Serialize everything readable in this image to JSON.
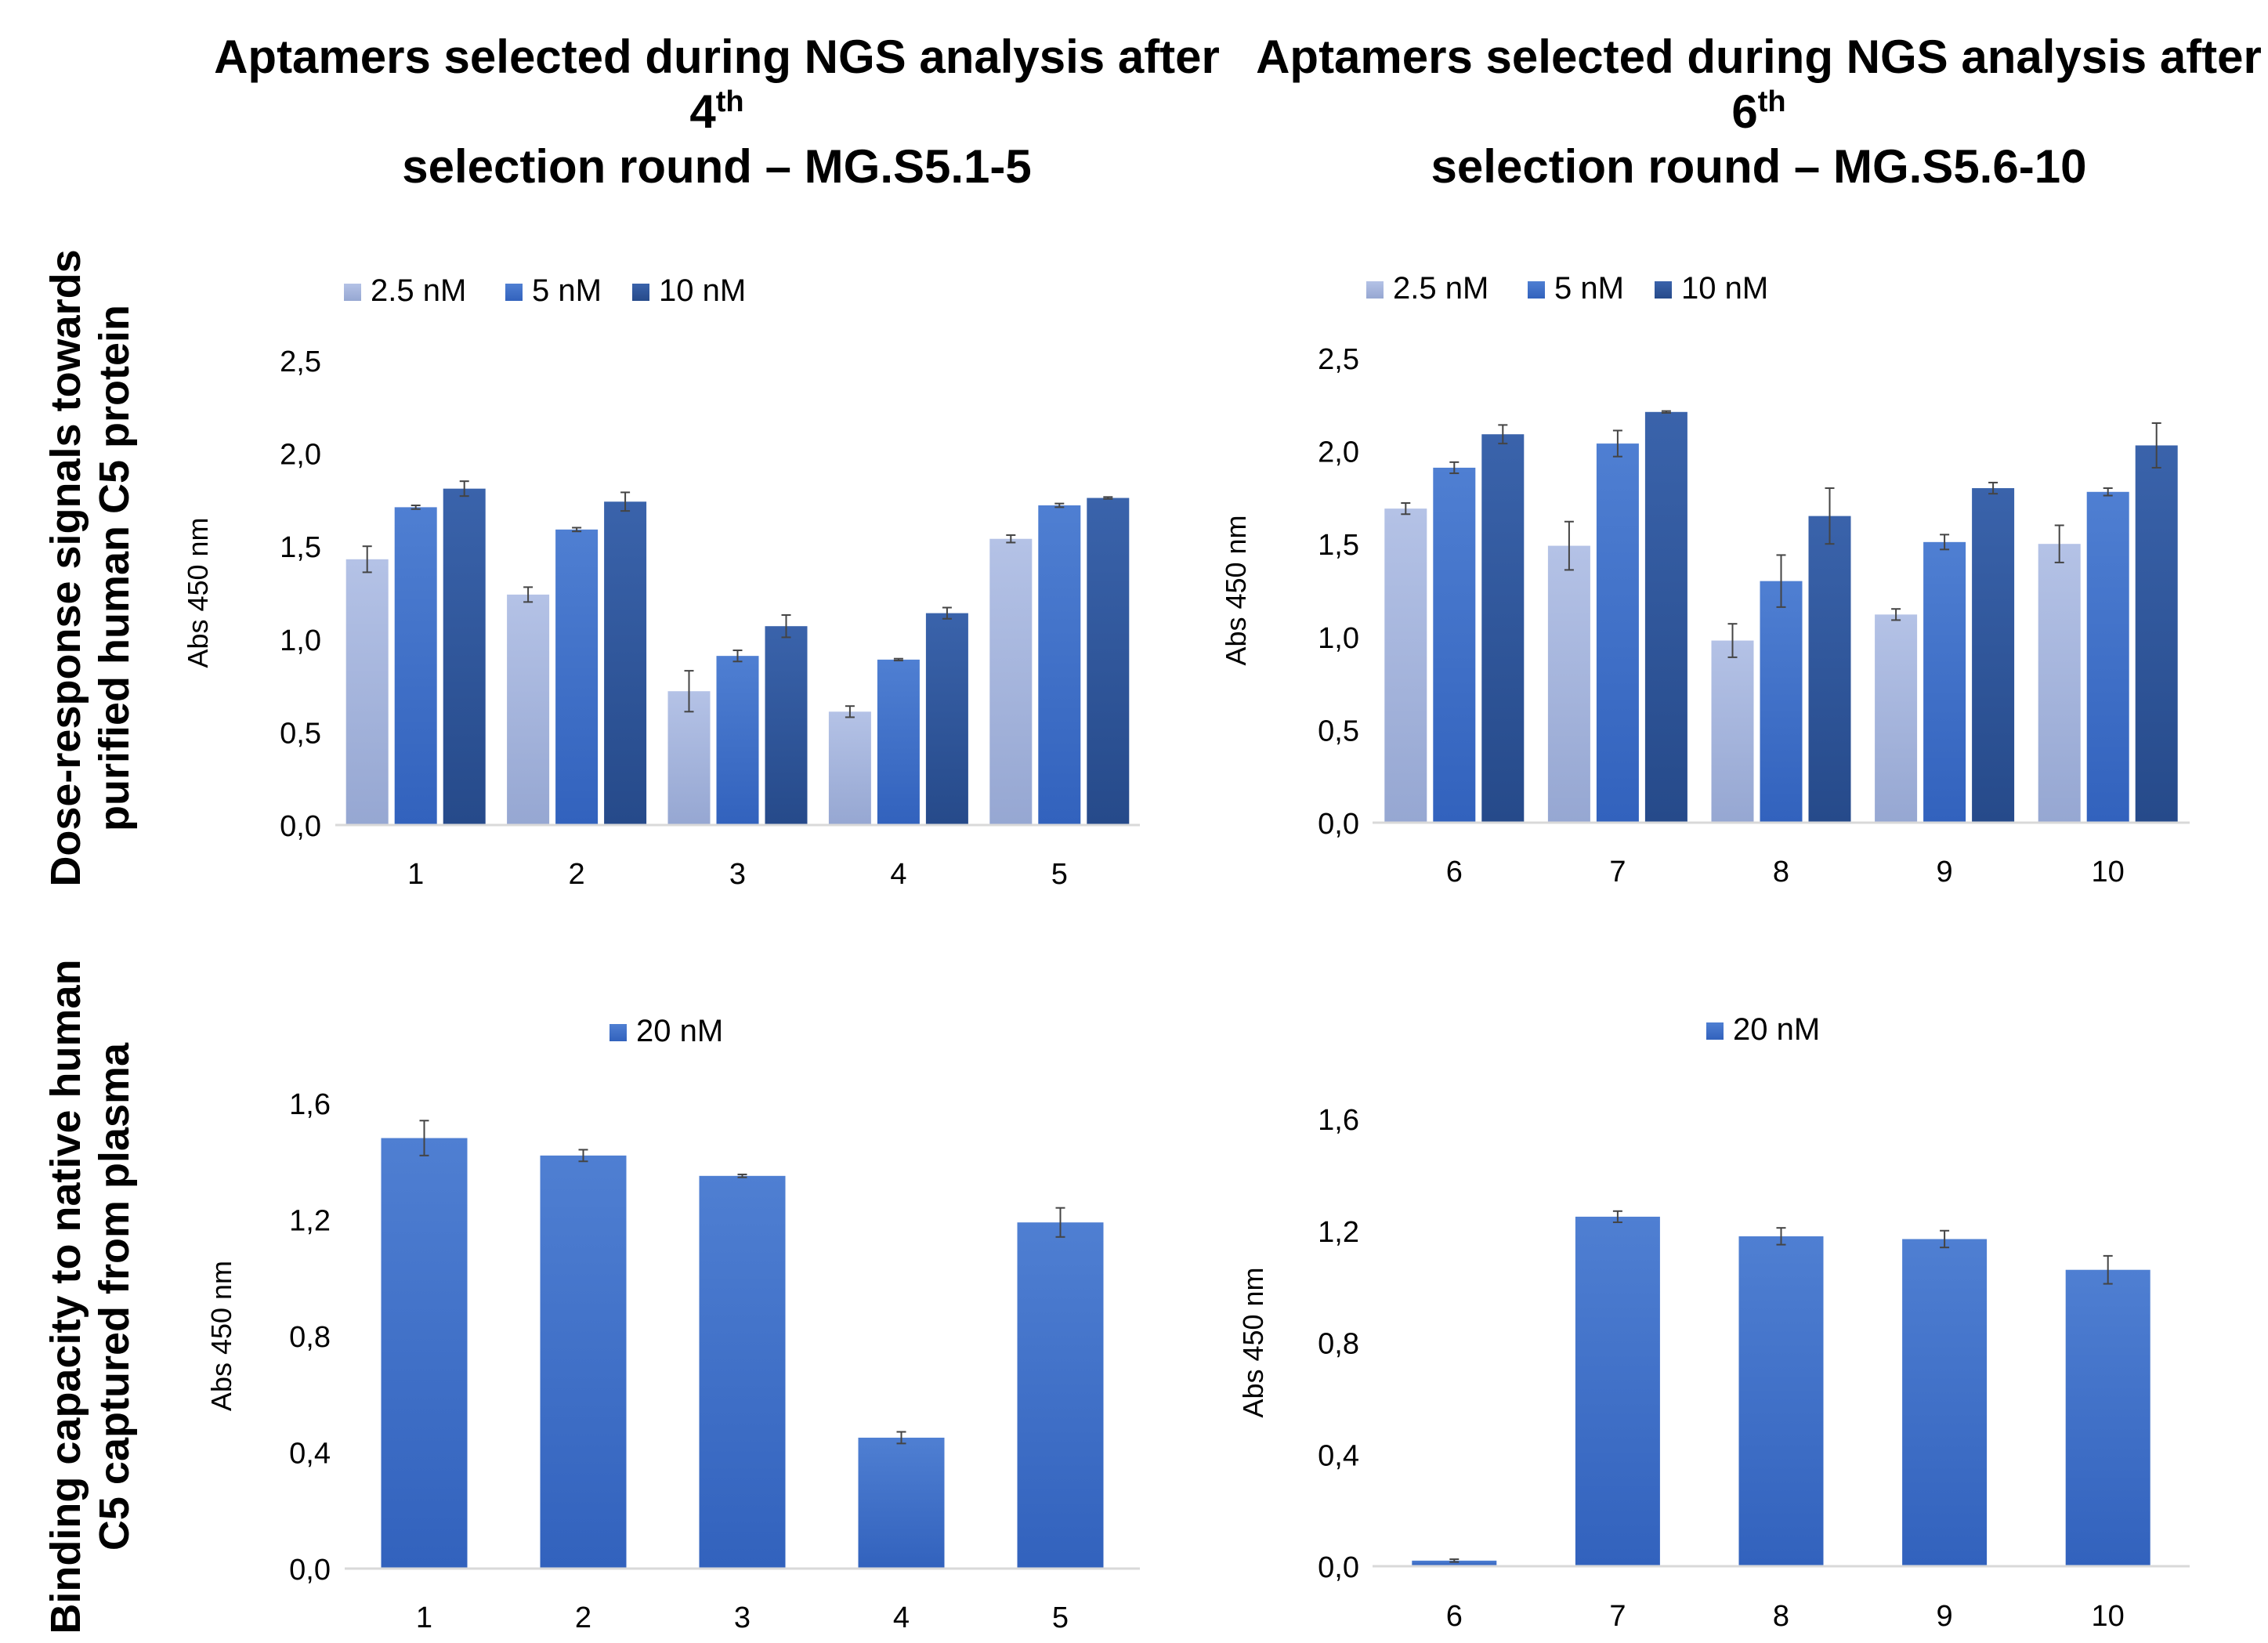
{
  "titles": {
    "left": {
      "main": "Aptamers selected during NGS analysis after 4",
      "sup": "th",
      "line2": "selection round – MG.S5.1-5"
    },
    "right": {
      "main": "Aptamers selected during NGS analysis after 6",
      "sup": "th",
      "line2": "selection round – MG.S5.6-10"
    }
  },
  "row_labels": {
    "top": {
      "line1": "Dose-response signals towards",
      "line2": "purified human C5 protein"
    },
    "bottom": {
      "line1": "Binding capacity to native human",
      "line2": "C5 captured from plasma"
    }
  },
  "colors": {
    "light": "#a5b4dd",
    "medium": "#4472c4",
    "dark": "#2f5597",
    "axis": "#d9d9d9",
    "errorbar": "#444444"
  },
  "chart_data": [
    {
      "id": "dose-left",
      "type": "bar",
      "ylabel": "Abs 450 nm",
      "ylim": [
        0,
        2.5
      ],
      "yticks": [
        0,
        0.5,
        1.0,
        1.5,
        2.0,
        2.5
      ],
      "ytick_labels": [
        "0,0",
        "0,5",
        "1,0",
        "1,5",
        "2,0",
        "2,5"
      ],
      "categories": [
        "1",
        "2",
        "3",
        "4",
        "5"
      ],
      "legend_position": "top",
      "series": [
        {
          "name": "2.5 nM",
          "color": "light",
          "values": [
            1.43,
            1.24,
            0.72,
            0.61,
            1.54
          ],
          "errors": [
            0.07,
            0.04,
            0.11,
            0.03,
            0.02
          ]
        },
        {
          "name": "5 nM",
          "color": "medium",
          "values": [
            1.71,
            1.59,
            0.91,
            0.89,
            1.72
          ],
          "errors": [
            0.01,
            0.01,
            0.03,
            0.005,
            0.01
          ]
        },
        {
          "name": "10 nM",
          "color": "dark",
          "values": [
            1.81,
            1.74,
            1.07,
            1.14,
            1.76
          ],
          "errors": [
            0.04,
            0.05,
            0.06,
            0.03,
            0.005
          ]
        }
      ]
    },
    {
      "id": "dose-right",
      "type": "bar",
      "ylabel": "Abs 450 nm",
      "ylim": [
        0,
        2.5
      ],
      "yticks": [
        0,
        0.5,
        1.0,
        1.5,
        2.0,
        2.5
      ],
      "ytick_labels": [
        "0,0",
        "0,5",
        "1,0",
        "1,5",
        "2,0",
        "2,5"
      ],
      "categories": [
        "6",
        "7",
        "8",
        "9",
        "10"
      ],
      "legend_position": "top",
      "series": [
        {
          "name": "2.5 nM",
          "color": "light",
          "values": [
            1.69,
            1.49,
            0.98,
            1.12,
            1.5
          ],
          "errors": [
            0.03,
            0.13,
            0.09,
            0.03,
            0.1
          ]
        },
        {
          "name": "5 nM",
          "color": "medium",
          "values": [
            1.91,
            2.04,
            1.3,
            1.51,
            1.78
          ],
          "errors": [
            0.03,
            0.07,
            0.14,
            0.04,
            0.02
          ]
        },
        {
          "name": "10 nM",
          "color": "dark",
          "values": [
            2.09,
            2.21,
            1.65,
            1.8,
            2.03
          ],
          "errors": [
            0.05,
            0.005,
            0.15,
            0.03,
            0.12
          ]
        }
      ]
    },
    {
      "id": "binding-left",
      "type": "bar",
      "ylabel": "Abs 450 nm",
      "ylim": [
        0,
        1.6
      ],
      "yticks": [
        0,
        0.4,
        0.8,
        1.2,
        1.6
      ],
      "ytick_labels": [
        "0,0",
        "0,4",
        "0,8",
        "1,2",
        "1,6"
      ],
      "categories": [
        "1",
        "2",
        "3",
        "4",
        "5"
      ],
      "legend_position": "top",
      "series": [
        {
          "name": "20 nM",
          "color": "medium",
          "values": [
            1.48,
            1.42,
            1.35,
            0.45,
            1.19
          ],
          "errors": [
            0.06,
            0.02,
            0.005,
            0.02,
            0.05
          ]
        }
      ]
    },
    {
      "id": "binding-right",
      "type": "bar",
      "ylabel": "Abs 450 nm",
      "ylim": [
        0,
        1.6
      ],
      "yticks": [
        0,
        0.4,
        0.8,
        1.2,
        1.6
      ],
      "ytick_labels": [
        "0,0",
        "0,4",
        "0,8",
        "1,2",
        "1,6"
      ],
      "categories": [
        "6",
        "7",
        "8",
        "9",
        "10"
      ],
      "legend_position": "top",
      "series": [
        {
          "name": "20 nM",
          "color": "medium",
          "values": [
            0.02,
            1.25,
            1.18,
            1.17,
            1.06
          ],
          "errors": [
            0.005,
            0.02,
            0.03,
            0.03,
            0.05
          ]
        }
      ]
    }
  ]
}
